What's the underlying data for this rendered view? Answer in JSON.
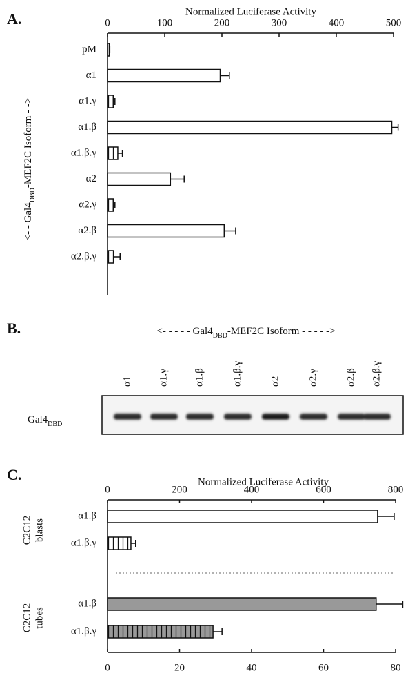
{
  "chart_data": [
    {
      "type": "bar",
      "orientation": "horizontal",
      "panel": "A.",
      "xlabel": "Normalized Luciferase Activity",
      "ylabel": [
        "<- - Gal4",
        "DBD",
        "-MEF2C Isoform - ->"
      ],
      "categories": [
        "pM",
        "α1",
        "α1.γ",
        "α1.β",
        "α1.β.γ",
        "α2",
        "α2.γ",
        "α2.β",
        "α2.β.γ"
      ],
      "values": [
        3,
        197,
        10,
        497,
        18,
        110,
        10,
        204,
        11
      ],
      "errors": [
        1,
        16,
        3,
        11,
        8,
        24,
        3,
        20,
        11
      ],
      "hatched": [
        false,
        false,
        true,
        false,
        true,
        false,
        true,
        false,
        true
      ],
      "color": "#ffffff",
      "xlim": [
        0,
        500
      ],
      "xticks": [
        0,
        100,
        200,
        300,
        400,
        500
      ]
    },
    {
      "type": "bar",
      "orientation": "horizontal",
      "panel": "C.",
      "xlabel": "Normalized Luciferase Activity",
      "xlim": [
        0,
        800
      ],
      "xticks": [
        0,
        200,
        400,
        600,
        800
      ],
      "x2lim": [
        0,
        80
      ],
      "x2ticks": [
        0,
        20,
        40,
        60,
        80
      ],
      "groups": [
        {
          "label": [
            "C2C12",
            "blasts"
          ],
          "axis": "x",
          "categories": [
            "α1.β",
            "α1.β.γ"
          ],
          "values": [
            750,
            65
          ],
          "errors": [
            46,
            13
          ],
          "hatched": [
            false,
            true
          ],
          "color": "#ffffff"
        },
        {
          "label": [
            "C2C12",
            "tubes"
          ],
          "axis": "x2",
          "categories": [
            "α1.β",
            "α1.β.γ"
          ],
          "values": [
            74.6,
            29.3
          ],
          "errors": [
            7.4,
            2.5
          ],
          "hatched": [
            false,
            true
          ],
          "color": "#999999"
        }
      ]
    }
  ],
  "blot": {
    "panel": "B.",
    "header": [
      "<- - - - - Gal4",
      "DBD",
      "-MEF2C Isoform - - - - ->"
    ],
    "lanes": [
      "α1",
      "α1.γ",
      "α1.β",
      "α1.β.γ",
      "α2",
      "α2.γ",
      "α2.β",
      "α2.β.γ"
    ],
    "row_label": [
      "Gal4",
      "DBD"
    ]
  }
}
